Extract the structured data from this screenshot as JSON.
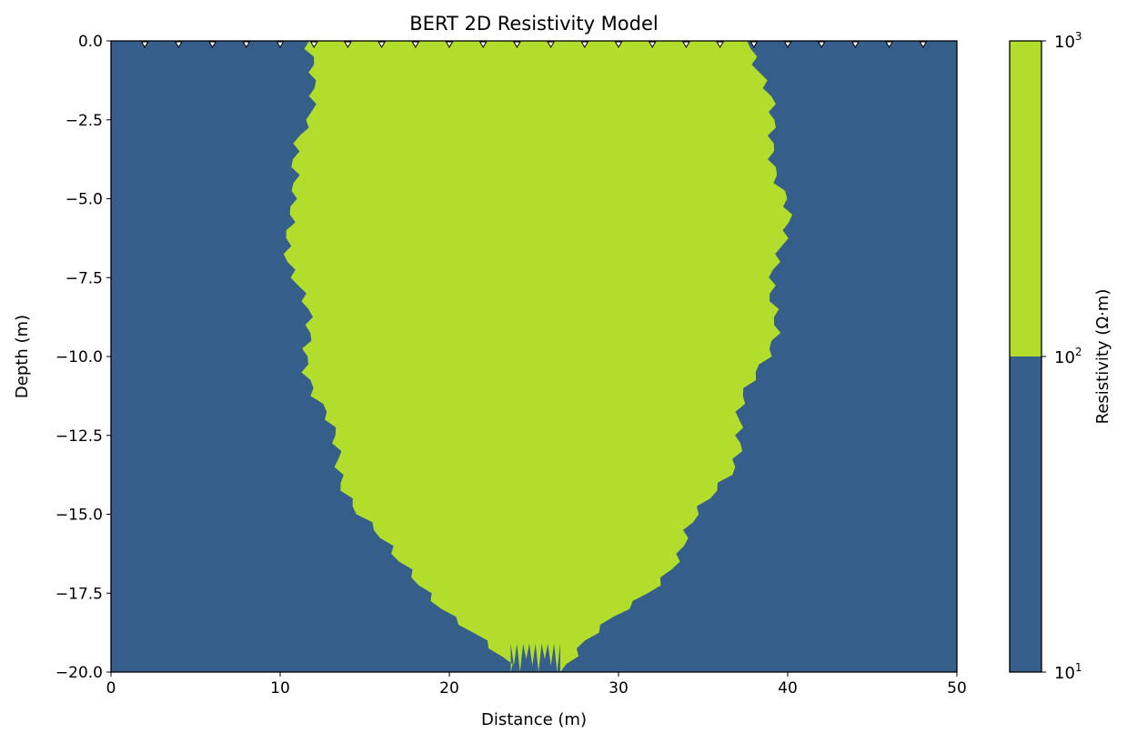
{
  "chart_data": {
    "type": "heatmap",
    "title": "BERT 2D Resistivity Model",
    "xlabel": "Distance (m)",
    "ylabel": "Depth (m)",
    "xlim": [
      0,
      50
    ],
    "ylim": [
      -20,
      0
    ],
    "xticks": [
      0,
      10,
      20,
      30,
      40,
      50
    ],
    "xtick_labels": [
      "0",
      "10",
      "20",
      "30",
      "40",
      "50"
    ],
    "yticks": [
      0,
      -2.5,
      -5,
      -7.5,
      -10,
      -12.5,
      -15,
      -17.5,
      -20
    ],
    "ytick_labels": [
      "0.0",
      "−2.5",
      "−5.0",
      "−7.5",
      "−10.0",
      "−12.5",
      "−15.0",
      "−17.5",
      "−20.0"
    ],
    "electrodes_x": [
      2,
      4,
      6,
      8,
      10,
      12,
      14,
      16,
      18,
      20,
      22,
      24,
      26,
      28,
      30,
      32,
      34,
      36,
      38,
      40,
      42,
      44,
      46,
      48
    ],
    "levels": [
      {
        "range": [
          10,
          100
        ],
        "color": "#365e8b"
      },
      {
        "range": [
          100,
          1000
        ],
        "color": "#b2dd2c"
      }
    ],
    "anomaly_boundary": {
      "depths": [
        0,
        -1.25,
        -2.5,
        -3.75,
        -5,
        -6.25,
        -7.5,
        -8.75,
        -10,
        -11.25,
        -12.5,
        -13.75,
        -15,
        -16.25,
        -17.5,
        -18.75,
        -20
      ],
      "left_x": [
        11.8,
        11.5,
        12,
        11,
        10.3,
        10.7,
        11,
        11.3,
        11.8,
        12.2,
        12.8,
        13.8,
        14.8,
        16.3,
        19,
        21.5,
        23.5
      ],
      "right_x": [
        38.2,
        38.5,
        38.8,
        39.5,
        39.8,
        39.5,
        39.5,
        39.2,
        38.5,
        37.8,
        37,
        36.3,
        35,
        33.5,
        31.5,
        29,
        26.5
      ]
    },
    "colorbar": {
      "label": "Resistivity (Ω·m)",
      "scale": "log",
      "ticks": [
        {
          "value": 10,
          "base": "10",
          "exp": "1"
        },
        {
          "value": 100,
          "base": "10",
          "exp": "2"
        },
        {
          "value": 1000,
          "base": "10",
          "exp": "3"
        }
      ]
    }
  }
}
